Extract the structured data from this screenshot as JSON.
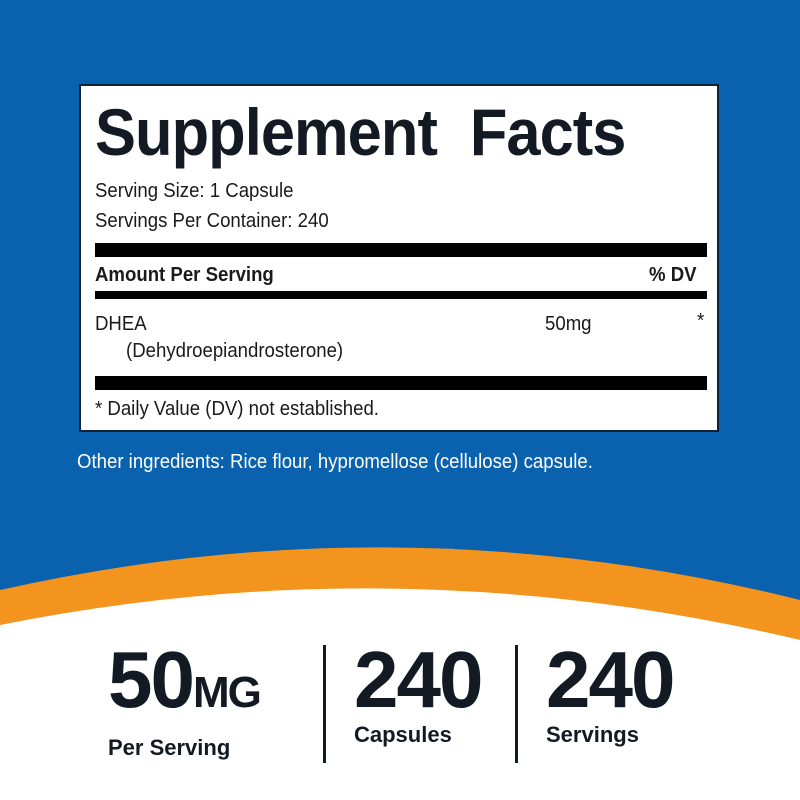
{
  "colors": {
    "background_blue": "#0a61ad",
    "accent_orange": "#f3941f",
    "text_dark": "#131a24"
  },
  "facts": {
    "title": "Supplement Facts",
    "serving_size": "Serving Size: 1 Capsule",
    "servings_per_container": "Servings Per Container: 240",
    "amount_header": "Amount Per Serving",
    "dv_header": "% DV",
    "ingredients": [
      {
        "name": "DHEA",
        "subname": "(Dehydroepiandrosterone)",
        "amount": "50mg",
        "dv": "*"
      }
    ],
    "footnote": "* Daily Value (DV) not established."
  },
  "other_ingredients": "Other ingredients: Rice flour, hypromellose (cellulose) capsule.",
  "stats": [
    {
      "value": "50",
      "unit": "MG",
      "label": "Per Serving"
    },
    {
      "value": "240",
      "unit": "",
      "label": "Capsules"
    },
    {
      "value": "240",
      "unit": "",
      "label": "Servings"
    }
  ]
}
